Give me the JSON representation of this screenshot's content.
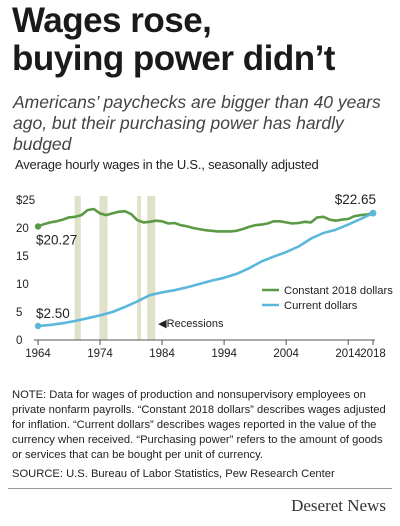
{
  "headline": {
    "line1": "Wages rose,",
    "line2": "buying power didn’t"
  },
  "subhead": "Americans’ paychecks are bigger than 40 years ago, but their purchasing power has hardly budged",
  "note": "NOTE: Data for wages of production and nonsupervisory employees on private nonfarm payrolls. “Constant 2018 dollars” describes wages adjusted for inflation. “Current dollars” describes wages reported in the value of the currency when received. “Purchasing power” refers to the amount of goods or services that can be bought per unit of currency.",
  "source": "SOURCE: U.S. Bureau of Labor Statistics, Pew Research Center",
  "brand": "Deseret News",
  "chart_data": {
    "type": "line",
    "title": "Average hourly wages in the U.S., seasonally adjusted",
    "xlabel": "",
    "ylabel": "",
    "xlim": [
      1964,
      2018
    ],
    "ylim": [
      0,
      25
    ],
    "x_ticks": [
      1964,
      1974,
      1984,
      1994,
      2004,
      2014,
      2018
    ],
    "y_ticks": [
      0,
      5,
      10,
      15,
      20,
      25
    ],
    "y_tick_labels": [
      "0",
      "5",
      "10",
      "15",
      "20",
      "$25"
    ],
    "grid": false,
    "legend_position": "lower-right",
    "recessions_label": "Recessions",
    "recessions": [
      [
        1969.9,
        1970.9
      ],
      [
        1973.9,
        1975.2
      ],
      [
        1980.0,
        1980.6
      ],
      [
        1981.6,
        1982.9
      ]
    ],
    "annotations": [
      {
        "text": "$22.65",
        "x": 2018,
        "y": 22.65
      },
      {
        "text": "$20.27",
        "x": 1964,
        "y": 20.27
      },
      {
        "text": "$2.50",
        "x": 1964,
        "y": 2.5
      }
    ],
    "colors": {
      "constant": "#5a9a45",
      "current": "#5bb7dc",
      "recession": "#dfe2c8"
    },
    "series": [
      {
        "name": "Constant 2018 dollars",
        "x": [
          1964,
          1965,
          1966,
          1967,
          1968,
          1969,
          1970,
          1971,
          1972,
          1973,
          1974,
          1975,
          1976,
          1977,
          1978,
          1979,
          1980,
          1981,
          1982,
          1983,
          1984,
          1985,
          1986,
          1987,
          1988,
          1989,
          1990,
          1991,
          1992,
          1993,
          1994,
          1995,
          1996,
          1997,
          1998,
          1999,
          2000,
          2001,
          2002,
          2003,
          2004,
          2005,
          2006,
          2007,
          2008,
          2009,
          2010,
          2011,
          2012,
          2013,
          2014,
          2015,
          2016,
          2017,
          2018
        ],
        "values": [
          20.27,
          20.7,
          21.0,
          21.2,
          21.5,
          21.9,
          22.0,
          22.3,
          23.2,
          23.4,
          22.6,
          22.3,
          22.6,
          22.9,
          23.0,
          22.5,
          21.4,
          21.0,
          21.1,
          21.3,
          21.2,
          20.8,
          20.9,
          20.5,
          20.3,
          20.0,
          19.8,
          19.6,
          19.5,
          19.4,
          19.4,
          19.4,
          19.5,
          19.8,
          20.2,
          20.5,
          20.6,
          20.8,
          21.2,
          21.2,
          21.0,
          20.8,
          20.9,
          21.1,
          21.0,
          21.9,
          22.0,
          21.5,
          21.3,
          21.5,
          21.6,
          22.1,
          22.3,
          22.4,
          22.65
        ]
      },
      {
        "name": "Current dollars",
        "x": [
          1964,
          1966,
          1968,
          1970,
          1972,
          1974,
          1976,
          1978,
          1980,
          1982,
          1984,
          1986,
          1988,
          1990,
          1992,
          1994,
          1996,
          1998,
          2000,
          2002,
          2004,
          2006,
          2008,
          2010,
          2012,
          2014,
          2016,
          2018
        ],
        "values": [
          2.5,
          2.7,
          3.0,
          3.4,
          3.9,
          4.4,
          5.0,
          5.9,
          6.9,
          8.0,
          8.5,
          8.9,
          9.4,
          10.0,
          10.6,
          11.1,
          11.8,
          12.8,
          14.0,
          14.9,
          15.7,
          16.7,
          18.1,
          19.1,
          19.7,
          20.6,
          21.6,
          22.65
        ]
      }
    ]
  }
}
